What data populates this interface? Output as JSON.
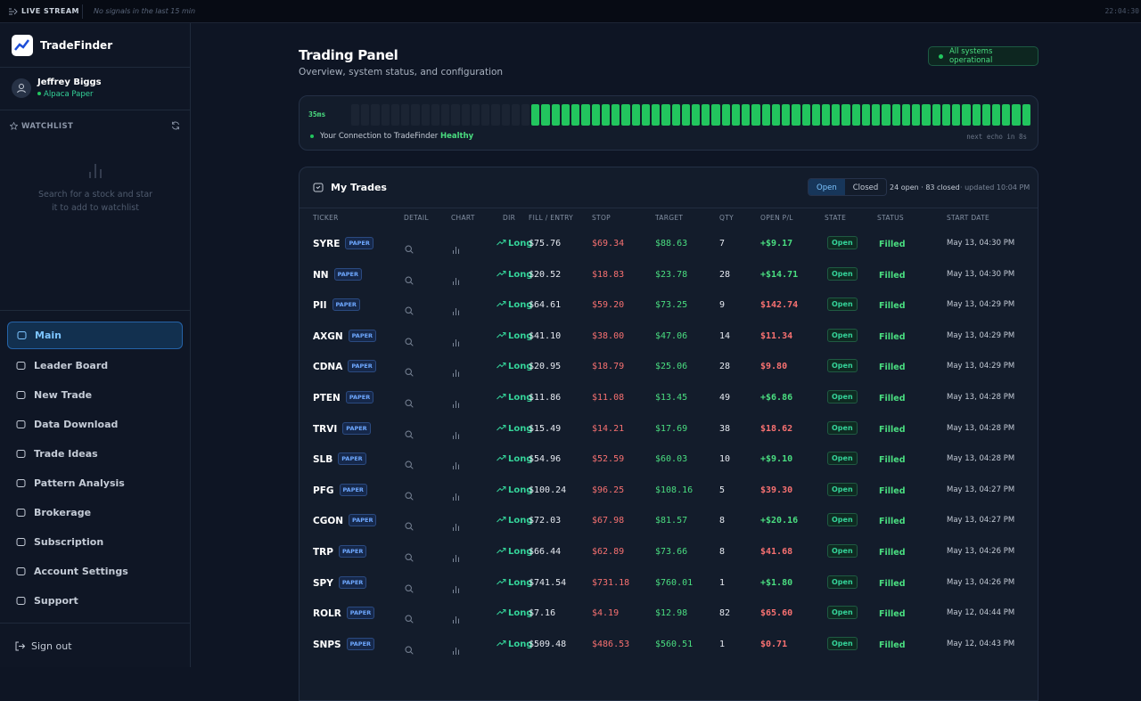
{
  "topbar": {
    "label": "LIVE STREAM",
    "status": "No signals in the last 15 min",
    "time": "22:04:30"
  },
  "sidebar": {
    "brand": "TradeFinder",
    "user": {
      "name": "Jeffrey Biggs",
      "account": "Alpaca Paper"
    },
    "watchlist": {
      "title": "WATCHLIST",
      "empty": "Search for a stock and star it to add to watchlist"
    },
    "nav": [
      "Main",
      "Leader Board",
      "New Trade",
      "Data Download",
      "Trade Ideas",
      "Pattern Analysis",
      "Brokerage",
      "Subscription",
      "Account Settings",
      "Support"
    ],
    "sign_out": "Sign out"
  },
  "header": {
    "title": "Trading Panel",
    "subtitle": "Overview, system status, and configuration",
    "status": "All systems operational"
  },
  "latency": {
    "value": "35ms",
    "label": "Your Connection to TradeFinder",
    "health": "Healthy",
    "next": "next echo in 8s"
  },
  "trades": {
    "title": "My Trades",
    "tabs": [
      "Open",
      "Closed"
    ],
    "summary": "24 open · 83 closed",
    "updated": "· updated 10:04 PM",
    "columns": [
      "TICKER",
      "DETAIL",
      "CHART",
      "DIR",
      "FILL / ENTRY",
      "STOP",
      "TARGET",
      "QTY",
      "OPEN P/L",
      "STATE",
      "STATUS",
      "START DATE"
    ],
    "rows": [
      {
        "ticker": "SYRE",
        "tag": "PAPER",
        "dir": "Long",
        "fill": "$75.76",
        "stop": "$69.34",
        "target": "$88.63",
        "qty": "7",
        "pnl": "+$9.17",
        "state": "Open",
        "status": "Filled",
        "date": "May 13, 04:30 PM"
      },
      {
        "ticker": "NN",
        "tag": "PAPER",
        "dir": "Long",
        "fill": "$20.52",
        "stop": "$18.83",
        "target": "$23.78",
        "qty": "28",
        "pnl": "+$14.71",
        "state": "Open",
        "status": "Filled",
        "date": "May 13, 04:30 PM"
      },
      {
        "ticker": "PII",
        "tag": "PAPER",
        "dir": "Long",
        "fill": "$64.61",
        "stop": "$59.20",
        "target": "$73.25",
        "qty": "9",
        "pnl": "$142.74",
        "state": "Open",
        "status": "Filled",
        "date": "May 13, 04:29 PM"
      },
      {
        "ticker": "AXGN",
        "tag": "PAPER",
        "dir": "Long",
        "fill": "$41.10",
        "stop": "$38.00",
        "target": "$47.06",
        "qty": "14",
        "pnl": "$11.34",
        "state": "Open",
        "status": "Filled",
        "date": "May 13, 04:29 PM"
      },
      {
        "ticker": "CDNA",
        "tag": "PAPER",
        "dir": "Long",
        "fill": "$20.95",
        "stop": "$18.79",
        "target": "$25.06",
        "qty": "28",
        "pnl": "$9.80",
        "state": "Open",
        "status": "Filled",
        "date": "May 13, 04:29 PM"
      },
      {
        "ticker": "PTEN",
        "tag": "PAPER",
        "dir": "Long",
        "fill": "$11.86",
        "stop": "$11.08",
        "target": "$13.45",
        "qty": "49",
        "pnl": "+$6.86",
        "state": "Open",
        "status": "Filled",
        "date": "May 13, 04:28 PM"
      },
      {
        "ticker": "TRVI",
        "tag": "PAPER",
        "dir": "Long",
        "fill": "$15.49",
        "stop": "$14.21",
        "target": "$17.69",
        "qty": "38",
        "pnl": "$18.62",
        "state": "Open",
        "status": "Filled",
        "date": "May 13, 04:28 PM"
      },
      {
        "ticker": "SLB",
        "tag": "PAPER",
        "dir": "Long",
        "fill": "$54.96",
        "stop": "$52.59",
        "target": "$60.03",
        "qty": "10",
        "pnl": "+$9.10",
        "state": "Open",
        "status": "Filled",
        "date": "May 13, 04:28 PM"
      },
      {
        "ticker": "PFG",
        "tag": "PAPER",
        "dir": "Long",
        "fill": "$100.24",
        "stop": "$96.25",
        "target": "$108.16",
        "qty": "5",
        "pnl": "$39.30",
        "state": "Open",
        "status": "Filled",
        "date": "May 13, 04:27 PM"
      },
      {
        "ticker": "CGON",
        "tag": "PAPER",
        "dir": "Long",
        "fill": "$72.03",
        "stop": "$67.98",
        "target": "$81.57",
        "qty": "8",
        "pnl": "+$20.16",
        "state": "Open",
        "status": "Filled",
        "date": "May 13, 04:27 PM"
      },
      {
        "ticker": "TRP",
        "tag": "PAPER",
        "dir": "Long",
        "fill": "$66.44",
        "stop": "$62.89",
        "target": "$73.66",
        "qty": "8",
        "pnl": "$41.68",
        "state": "Open",
        "status": "Filled",
        "date": "May 13, 04:26 PM"
      },
      {
        "ticker": "SPY",
        "tag": "PAPER",
        "dir": "Long",
        "fill": "$741.54",
        "stop": "$731.18",
        "target": "$760.01",
        "qty": "1",
        "pnl": "+$1.80",
        "state": "Open",
        "status": "Filled",
        "date": "May 13, 04:26 PM"
      },
      {
        "ticker": "ROLR",
        "tag": "PAPER",
        "dir": "Long",
        "fill": "$7.16",
        "stop": "$4.19",
        "target": "$12.98",
        "qty": "82",
        "pnl": "$65.60",
        "state": "Open",
        "status": "Filled",
        "date": "May 12, 04:44 PM"
      },
      {
        "ticker": "SNPS",
        "tag": "PAPER",
        "dir": "Long",
        "fill": "$509.48",
        "stop": "$486.53",
        "target": "$560.51",
        "qty": "1",
        "pnl": "$0.71",
        "state": "Open",
        "status": "Filled",
        "date": "May 12, 04:43 PM"
      }
    ]
  }
}
